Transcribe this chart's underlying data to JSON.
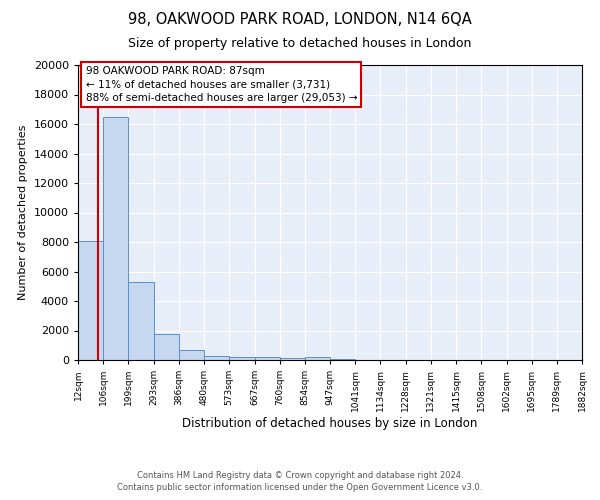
{
  "title": "98, OAKWOOD PARK ROAD, LONDON, N14 6QA",
  "subtitle": "Size of property relative to detached houses in London",
  "xlabel": "Distribution of detached houses by size in London",
  "ylabel": "Number of detached properties",
  "bar_color": "#c5d8f0",
  "bar_edge_color": "#5b8fcc",
  "background_color": "#e8eef8",
  "grid_color": "#ffffff",
  "bin_edges": [
    12,
    106,
    199,
    293,
    386,
    480,
    573,
    667,
    760,
    854,
    947,
    1041,
    1134,
    1228,
    1321,
    1415,
    1508,
    1602,
    1695,
    1789,
    1882
  ],
  "bin_heights": [
    8100,
    16500,
    5300,
    1750,
    700,
    300,
    220,
    190,
    155,
    190,
    50,
    30,
    18,
    10,
    6,
    3,
    2,
    1,
    1,
    1
  ],
  "property_size": 87,
  "property_line_color": "#cc0000",
  "ylim": [
    0,
    20000
  ],
  "yticks": [
    0,
    2000,
    4000,
    6000,
    8000,
    10000,
    12000,
    14000,
    16000,
    18000,
    20000
  ],
  "annotation_text": "98 OAKWOOD PARK ROAD: 87sqm\n← 11% of detached houses are smaller (3,731)\n88% of semi-detached houses are larger (29,053) →",
  "annotation_box_color": "#cc0000",
  "footer_line1": "Contains HM Land Registry data © Crown copyright and database right 2024.",
  "footer_line2": "Contains public sector information licensed under the Open Government Licence v3.0.",
  "xtick_labels": [
    "12sqm",
    "106sqm",
    "199sqm",
    "293sqm",
    "386sqm",
    "480sqm",
    "573sqm",
    "667sqm",
    "760sqm",
    "854sqm",
    "947sqm",
    "1041sqm",
    "1134sqm",
    "1228sqm",
    "1321sqm",
    "1415sqm",
    "1508sqm",
    "1602sqm",
    "1695sqm",
    "1789sqm",
    "1882sqm"
  ]
}
